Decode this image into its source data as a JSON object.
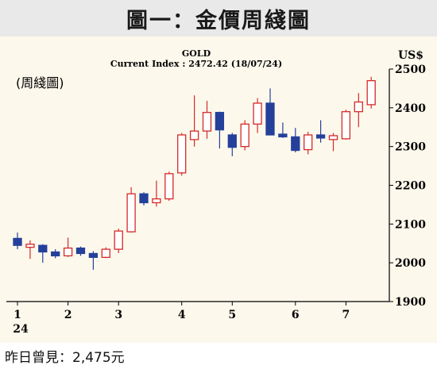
{
  "header": {
    "title": "圖一：金價周綫圖"
  },
  "footer": {
    "text": "昨日曾見：2,475元"
  },
  "chart_data": {
    "type": "candlestick",
    "title": "GOLD",
    "subtitle": "Current Index : 2472.42 (18/07/24)",
    "panel_label": "(周綫圖)",
    "y_unit": "US$",
    "ylim": [
      1900,
      2500
    ],
    "y_ticks": [
      1900,
      2000,
      2100,
      2200,
      2300,
      2400,
      2500
    ],
    "x_ticks": [
      {
        "label": "1",
        "sublabel": "24",
        "week": 0
      },
      {
        "label": "2",
        "sublabel": "",
        "week": 4
      },
      {
        "label": "3",
        "sublabel": "",
        "week": 8
      },
      {
        "label": "4",
        "sublabel": "",
        "week": 13
      },
      {
        "label": "5",
        "sublabel": "",
        "week": 17
      },
      {
        "label": "6",
        "sublabel": "",
        "week": 22
      },
      {
        "label": "7",
        "sublabel": "",
        "week": 26
      }
    ],
    "colors": {
      "up": "#d42a2a",
      "down": "#25409a",
      "axis": "#000000",
      "background": "#fdf8ec"
    },
    "candles": [
      {
        "open": 2063,
        "high": 2078,
        "low": 2035,
        "close": 2045
      },
      {
        "open": 2040,
        "high": 2058,
        "low": 2010,
        "close": 2048
      },
      {
        "open": 2045,
        "high": 2048,
        "low": 2000,
        "close": 2028
      },
      {
        "open": 2028,
        "high": 2035,
        "low": 2012,
        "close": 2018
      },
      {
        "open": 2018,
        "high": 2065,
        "low": 2015,
        "close": 2038
      },
      {
        "open": 2038,
        "high": 2042,
        "low": 2018,
        "close": 2024
      },
      {
        "open": 2024,
        "high": 2030,
        "low": 1982,
        "close": 2014
      },
      {
        "open": 2014,
        "high": 2040,
        "low": 2012,
        "close": 2035
      },
      {
        "open": 2035,
        "high": 2088,
        "low": 2025,
        "close": 2082
      },
      {
        "open": 2080,
        "high": 2195,
        "low": 2078,
        "close": 2178
      },
      {
        "open": 2178,
        "high": 2182,
        "low": 2148,
        "close": 2155
      },
      {
        "open": 2155,
        "high": 2212,
        "low": 2145,
        "close": 2165
      },
      {
        "open": 2165,
        "high": 2235,
        "low": 2160,
        "close": 2230
      },
      {
        "open": 2232,
        "high": 2335,
        "low": 2225,
        "close": 2330
      },
      {
        "open": 2318,
        "high": 2432,
        "low": 2300,
        "close": 2340
      },
      {
        "open": 2340,
        "high": 2418,
        "low": 2320,
        "close": 2388
      },
      {
        "open": 2388,
        "high": 2390,
        "low": 2295,
        "close": 2343
      },
      {
        "open": 2330,
        "high": 2335,
        "low": 2275,
        "close": 2298
      },
      {
        "open": 2300,
        "high": 2368,
        "low": 2290,
        "close": 2358
      },
      {
        "open": 2358,
        "high": 2425,
        "low": 2335,
        "close": 2412
      },
      {
        "open": 2412,
        "high": 2450,
        "low": 2330,
        "close": 2330
      },
      {
        "open": 2332,
        "high": 2362,
        "low": 2322,
        "close": 2325
      },
      {
        "open": 2325,
        "high": 2348,
        "low": 2285,
        "close": 2290
      },
      {
        "open": 2292,
        "high": 2338,
        "low": 2280,
        "close": 2330
      },
      {
        "open": 2330,
        "high": 2368,
        "low": 2310,
        "close": 2322
      },
      {
        "open": 2318,
        "high": 2335,
        "low": 2288,
        "close": 2328
      },
      {
        "open": 2320,
        "high": 2395,
        "low": 2318,
        "close": 2390
      },
      {
        "open": 2390,
        "high": 2438,
        "low": 2350,
        "close": 2415
      },
      {
        "open": 2408,
        "high": 2480,
        "low": 2398,
        "close": 2470
      }
    ]
  }
}
